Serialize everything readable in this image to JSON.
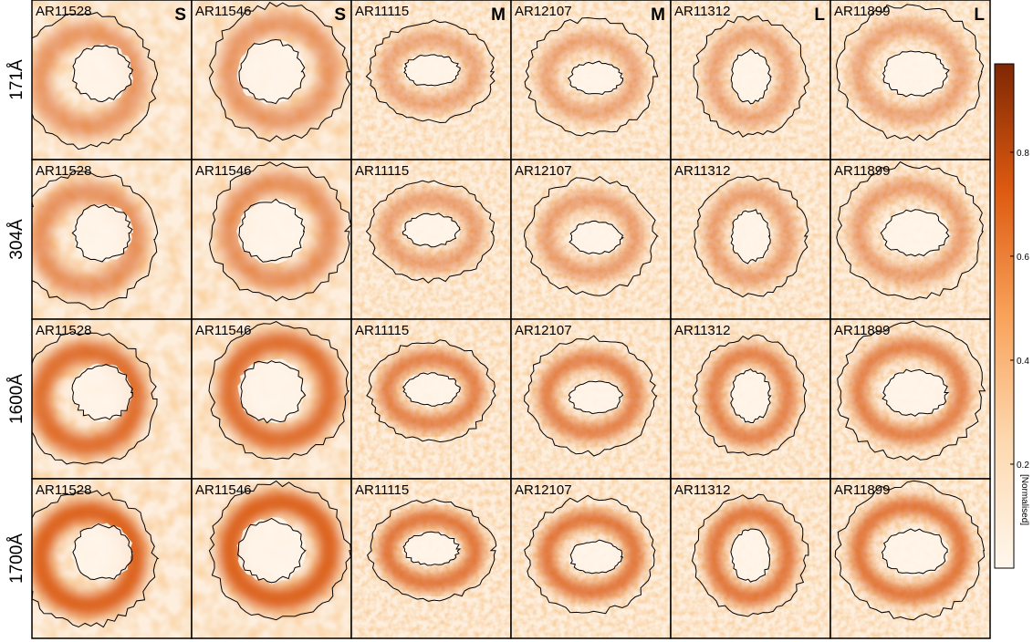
{
  "rows": [
    {
      "label": "171Å"
    },
    {
      "label": "304Å"
    },
    {
      "label": "1600Å"
    },
    {
      "label": "1700Å"
    }
  ],
  "columns": [
    {
      "ar": "AR11528",
      "size": "S"
    },
    {
      "ar": "AR11546",
      "size": "S"
    },
    {
      "ar": "AR11115",
      "size": "M"
    },
    {
      "ar": "AR12107",
      "size": "M"
    },
    {
      "ar": "AR11312",
      "size": "L"
    },
    {
      "ar": "AR11899",
      "size": "L"
    }
  ],
  "colorbar": {
    "label": "[Normalised]",
    "ticks": [
      "0.2",
      "0.4",
      "0.6",
      "0.8"
    ],
    "tick_values": [
      0.2,
      0.4,
      0.6,
      0.8
    ],
    "range": [
      0.0,
      0.97
    ],
    "color_low": "#fff7ec",
    "color_mid": "#f08a3a",
    "color_high": "#7f2704"
  }
}
